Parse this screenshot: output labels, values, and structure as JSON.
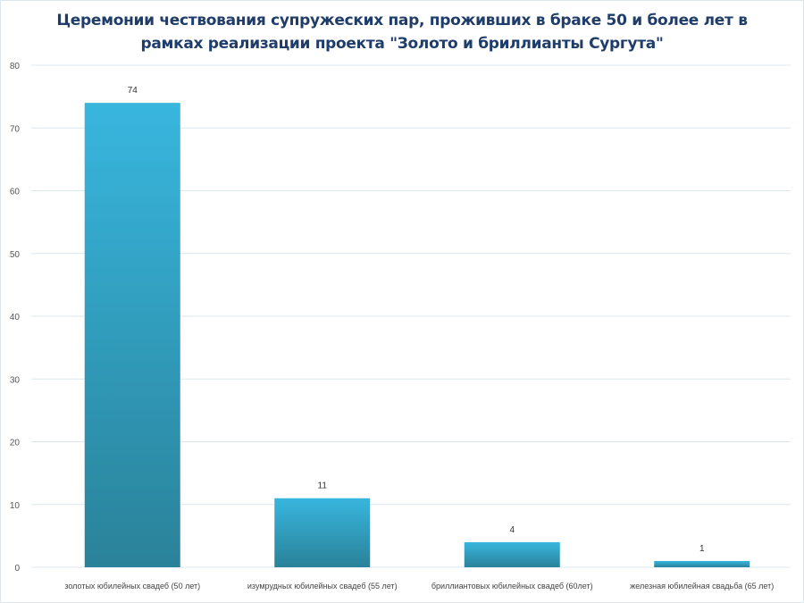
{
  "chart_data": {
    "type": "bar",
    "title_lines": [
      "Церемонии  чествования  супружеских пар, проживших в браке 50 и более лет в",
      "рамках реализации проекта \"Золото и бриллианты  Сургута\""
    ],
    "categories": [
      "золотых юбилейных свадеб (50 лет)",
      "изумрудных юбилейных свадеб  (55 лет)",
      "бриллиантовых юбилейных свадеб (60лет)",
      "железная  юбилейная свадьба (65 лет)"
    ],
    "values": [
      74,
      11,
      4,
      1
    ],
    "ylim": [
      0,
      80
    ],
    "yticks": [
      0,
      10,
      20,
      30,
      40,
      50,
      60,
      70,
      80
    ],
    "grid": true,
    "legend": "none",
    "colors": {
      "bar_top": "#38b6de",
      "bar_bottom": "#2a8299",
      "grid": "#dbe7ee",
      "title": "#1f3d6b"
    }
  }
}
